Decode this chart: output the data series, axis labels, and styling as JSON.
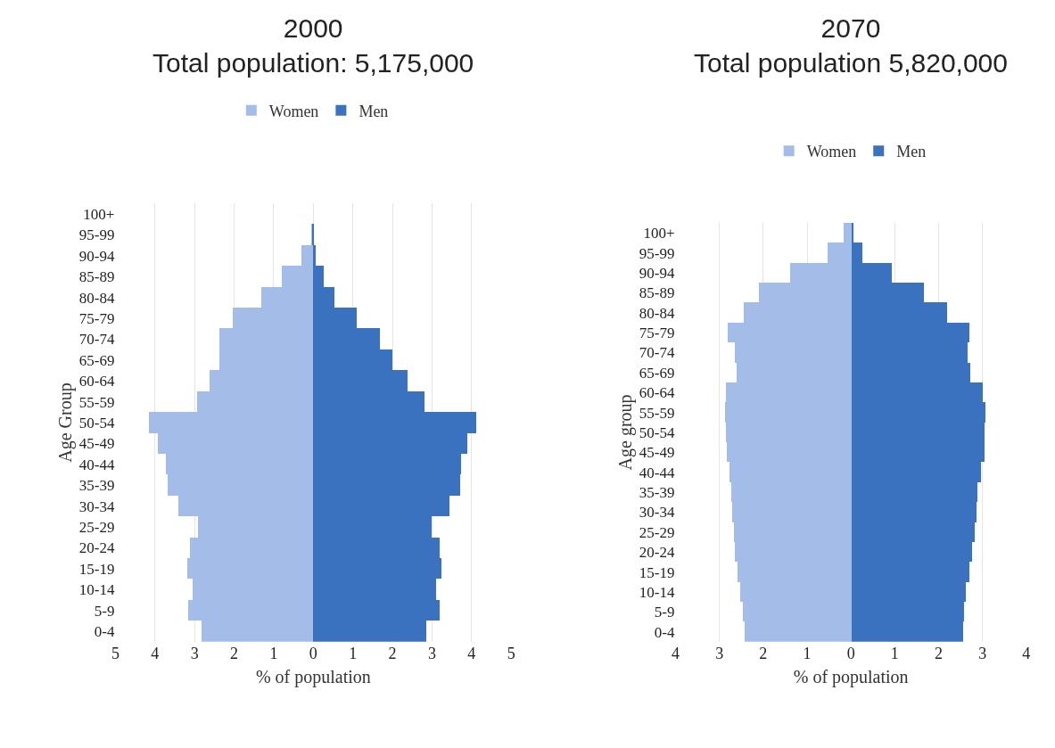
{
  "chart_data": [
    {
      "type": "bar",
      "orientation": "horizontal",
      "title": "2000\nTotal population: 5,175,000",
      "xlabel": "% of population",
      "ylabel": "Age Group",
      "categories": [
        "100+",
        "95-99",
        "90-94",
        "85-89",
        "80-84",
        "75-79",
        "70-74",
        "65-69",
        "60-64",
        "55-59",
        "50-54",
        "45-49",
        "40-44",
        "35-39",
        "30-34",
        "25-29",
        "20-24",
        "15-19",
        "10-14",
        "5-9",
        "0-4"
      ],
      "series": [
        {
          "name": "Women",
          "color": "#a4bde8",
          "values": [
            0,
            -0.03,
            -0.28,
            -0.78,
            -1.3,
            -2.02,
            -2.37,
            -2.37,
            -2.61,
            -2.92,
            -4.14,
            -3.91,
            -3.71,
            -3.66,
            -3.39,
            -2.91,
            -3.11,
            -3.17,
            -3.05,
            -3.15,
            -2.81
          ]
        },
        {
          "name": "Men",
          "color": "#3a72c0",
          "values": [
            0,
            0.02,
            0.07,
            0.28,
            0.55,
            1.11,
            1.69,
            2.0,
            2.4,
            2.83,
            4.13,
            3.91,
            3.75,
            3.71,
            3.45,
            3.0,
            3.2,
            3.25,
            3.11,
            3.2,
            2.87
          ]
        }
      ],
      "xlim": [
        -5,
        5
      ],
      "xticks": [
        {
          "value": -5,
          "label": "5"
        },
        {
          "value": -4,
          "label": "4"
        },
        {
          "value": -3,
          "label": "3"
        },
        {
          "value": -2,
          "label": "2"
        },
        {
          "value": -1,
          "label": "1"
        },
        0,
        1,
        2,
        3,
        4,
        5
      ],
      "grid": "x",
      "legend": "top",
      "stacked": true
    },
    {
      "type": "bar",
      "orientation": "horizontal",
      "title": "2070\nTotal population 5,820,000",
      "xlabel": "% of population",
      "ylabel": "Age group",
      "categories": [
        "100+",
        "95-99",
        "90-94",
        "85-89",
        "80-84",
        "75-79",
        "70-74",
        "65-69",
        "60-64",
        "55-59",
        "50-54",
        "45-49",
        "40-44",
        "35-39",
        "30-34",
        "25-29",
        "20-24",
        "15-19",
        "10-14",
        "5-9",
        "0-4"
      ],
      "series": [
        {
          "name": "Women",
          "color": "#a4bde8",
          "values": [
            -0.18,
            -0.54,
            -1.4,
            -2.1,
            -2.46,
            -2.83,
            -2.66,
            -2.62,
            -2.86,
            -2.88,
            -2.86,
            -2.85,
            -2.78,
            -2.74,
            -2.71,
            -2.68,
            -2.65,
            -2.6,
            -2.53,
            -2.48,
            -2.43
          ]
        },
        {
          "name": "Men",
          "color": "#3a72c0",
          "values": [
            0.05,
            0.26,
            0.92,
            1.66,
            2.18,
            2.7,
            2.65,
            2.72,
            3.0,
            3.05,
            3.03,
            3.03,
            2.95,
            2.88,
            2.85,
            2.81,
            2.75,
            2.69,
            2.62,
            2.57,
            2.54
          ]
        }
      ],
      "xlim": [
        -4,
        4
      ],
      "xticks": [
        {
          "value": -4,
          "label": "4"
        },
        {
          "value": -3,
          "label": "3"
        },
        {
          "value": -2,
          "label": "2"
        },
        {
          "value": -1,
          "label": "1"
        },
        0,
        1,
        2,
        3,
        4
      ],
      "grid": "x",
      "legend": "top",
      "stacked": true
    }
  ]
}
